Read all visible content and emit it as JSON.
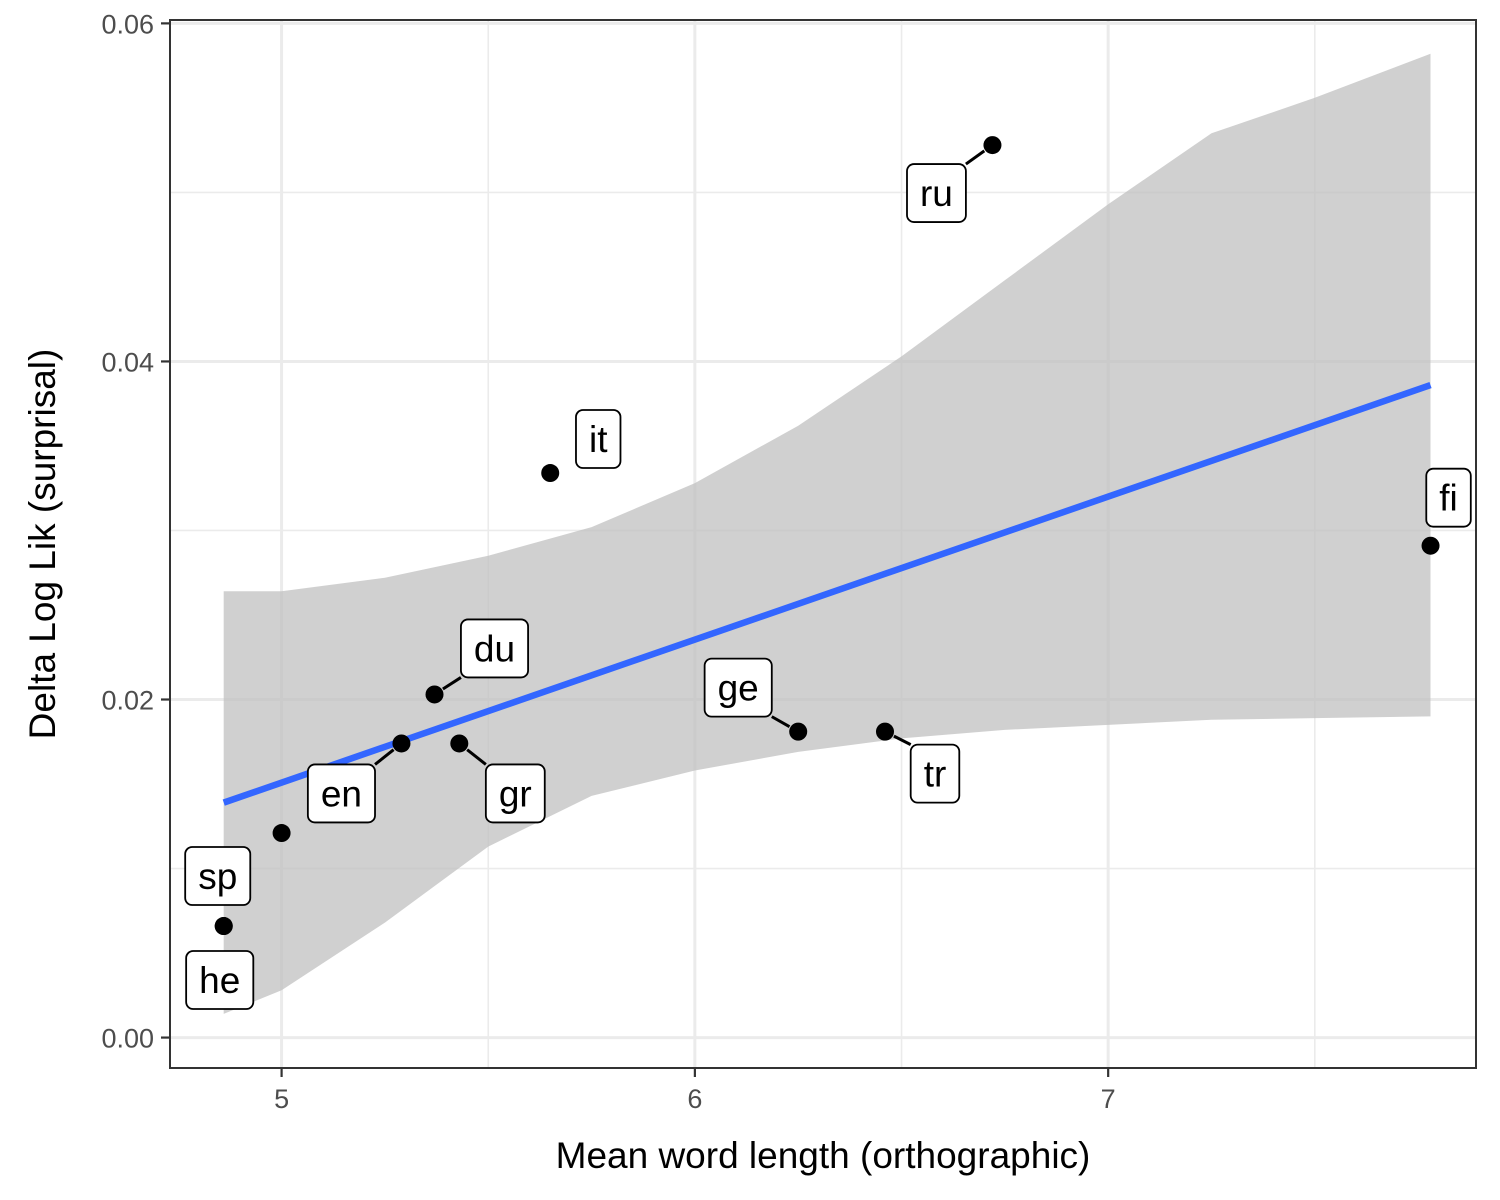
{
  "chart_data": {
    "type": "scatter",
    "title": "",
    "xlabel": "Mean word length (orthographic)",
    "ylabel": "Delta Log Lik (surprisal)",
    "xlim": [
      4.73,
      7.89
    ],
    "ylim": [
      -0.0018,
      0.0602
    ],
    "x_ticks": [
      5,
      6,
      7
    ],
    "x_tick_labels": [
      "5",
      "6",
      "7"
    ],
    "y_ticks": [
      0.0,
      0.02,
      0.04,
      0.06
    ],
    "y_tick_labels": [
      "0.00",
      "0.02",
      "0.04",
      "0.06"
    ],
    "x_minor_ticks": [
      5.5,
      6.5,
      7.5
    ],
    "y_minor_ticks": [
      0.01,
      0.03,
      0.05
    ],
    "grid": true,
    "legend": "none",
    "points": [
      {
        "label": "sp",
        "x": 4.86,
        "y": 0.0066
      },
      {
        "label": "he",
        "x": 4.86,
        "y": 0.0066
      },
      {
        "label": "en",
        "x": 5.0,
        "y": 0.0121
      },
      {
        "label": "en",
        "x": 5.29,
        "y": 0.0174
      },
      {
        "label": "du",
        "x": 5.37,
        "y": 0.0203
      },
      {
        "label": "gr",
        "x": 5.43,
        "y": 0.0174
      },
      {
        "label": "it",
        "x": 5.65,
        "y": 0.0334
      },
      {
        "label": "ge",
        "x": 6.25,
        "y": 0.0181
      },
      {
        "label": "tr",
        "x": 6.46,
        "y": 0.0181
      },
      {
        "label": "ru",
        "x": 6.72,
        "y": 0.0528
      },
      {
        "label": "fi",
        "x": 7.78,
        "y": 0.0291
      }
    ],
    "visible_labels": [
      "sp",
      "he",
      "en",
      "du",
      "gr",
      "it",
      "ge",
      "tr",
      "ru",
      "fi"
    ],
    "fit_line": {
      "x": [
        4.86,
        7.78
      ],
      "y": [
        0.0139,
        0.0386
      ]
    },
    "confidence_band": {
      "x": [
        4.86,
        5.0,
        5.25,
        5.5,
        5.75,
        6.0,
        6.25,
        6.5,
        6.75,
        7.0,
        7.25,
        7.5,
        7.78
      ],
      "upper": [
        0.0264,
        0.0264,
        0.0272,
        0.0285,
        0.0302,
        0.0328,
        0.0362,
        0.0403,
        0.0448,
        0.0493,
        0.0535,
        0.0556,
        0.0582
      ],
      "lower": [
        0.0014,
        0.0028,
        0.0068,
        0.0113,
        0.0143,
        0.0158,
        0.0169,
        0.0177,
        0.0182,
        0.0185,
        0.0188,
        0.0189,
        0.019
      ]
    },
    "colors": {
      "fit_line": "#3366FF",
      "confidence_band": "#bebebe",
      "points": "#000000",
      "grid": "#ebebeb",
      "panel_border": "#333333"
    }
  }
}
